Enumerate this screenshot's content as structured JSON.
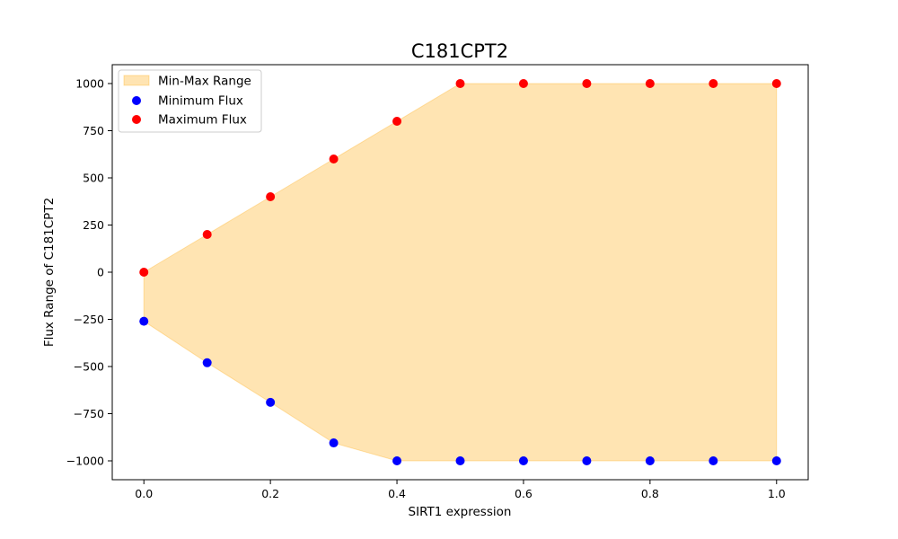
{
  "chart_data": {
    "type": "scatter",
    "title": "C181CPT2",
    "xlabel": "SIRT1 expression",
    "ylabel": "Flux Range of C181CPT2",
    "x": [
      0.0,
      0.1,
      0.2,
      0.3,
      0.4,
      0.5,
      0.6,
      0.7,
      0.8,
      0.9,
      1.0
    ],
    "series": [
      {
        "name": "Minimum Flux",
        "color": "#0000ff",
        "values": [
          -260,
          -480,
          -690,
          -905,
          -1000,
          -1000,
          -1000,
          -1000,
          -1000,
          -1000,
          -1000
        ]
      },
      {
        "name": "Maximum Flux",
        "color": "#ff0000",
        "values": [
          0,
          200,
          400,
          600,
          800,
          1000,
          1000,
          1000,
          1000,
          1000,
          1000
        ]
      }
    ],
    "fill": {
      "name": "Min-Max Range",
      "color": "#ffa500",
      "opacity": 0.3
    },
    "xlim": [
      -0.05,
      1.05
    ],
    "ylim": [
      -1100,
      1100
    ],
    "xticks": [
      {
        "value": 0.0,
        "label": "0.0"
      },
      {
        "value": 0.2,
        "label": "0.2"
      },
      {
        "value": 0.4,
        "label": "0.4"
      },
      {
        "value": 0.6,
        "label": "0.6"
      },
      {
        "value": 0.8,
        "label": "0.8"
      },
      {
        "value": 1.0,
        "label": "1.0"
      }
    ],
    "yticks": [
      {
        "value": 1000,
        "label": "1000"
      },
      {
        "value": 750,
        "label": "750"
      },
      {
        "value": 500,
        "label": "500"
      },
      {
        "value": 250,
        "label": "250"
      },
      {
        "value": 0,
        "label": "0"
      },
      {
        "value": -250,
        "label": "−250"
      },
      {
        "value": -500,
        "label": "−500"
      },
      {
        "value": -750,
        "label": "−750"
      },
      {
        "value": -1000,
        "label": "−1000"
      }
    ],
    "grid": false,
    "legend_position": "top-left"
  }
}
